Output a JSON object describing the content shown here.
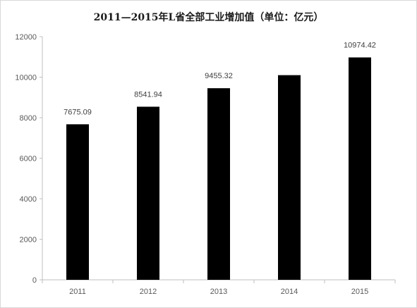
{
  "chart_data": {
    "type": "bar",
    "title": "2011—2015年L省全部工业增加值（单位：亿元）",
    "categories": [
      "2011",
      "2012",
      "2013",
      "2014",
      "2015"
    ],
    "values": [
      7675.09,
      8541.94,
      9455.32,
      10100,
      10974.42
    ],
    "data_labels": [
      "7675.09",
      "8541.94",
      "9455.32",
      "",
      "10974.42"
    ],
    "xlabel": "",
    "ylabel": "",
    "ylim": [
      0,
      12000
    ],
    "yticks": [
      0,
      2000,
      4000,
      6000,
      8000,
      10000,
      12000
    ],
    "grid": false,
    "legend": "none",
    "bar_color": "#000000",
    "axis_color": "#bfbfbf"
  }
}
